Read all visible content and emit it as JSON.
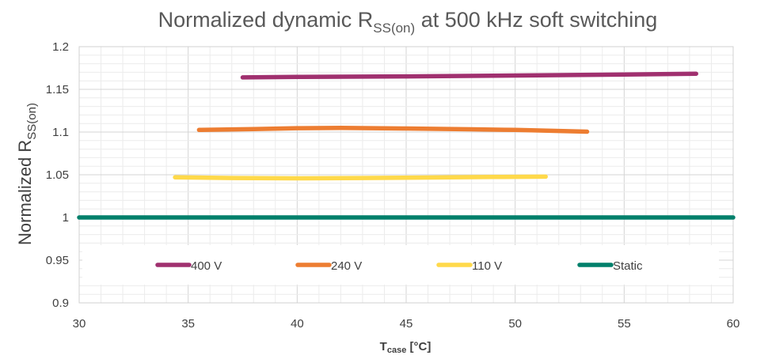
{
  "chart_data": {
    "type": "line",
    "title": {
      "main": "Normalized dynamic R",
      "sub": "SS(on)",
      "suffix": " at 500 kHz soft switching"
    },
    "xlabel": {
      "main": "T",
      "sub": "case",
      "suffix": " [°C]"
    },
    "ylabel": {
      "main": "Normalized R",
      "sub": "SS(on)"
    },
    "xlim": [
      30,
      60
    ],
    "ylim": [
      0.9,
      1.2
    ],
    "x_ticks": [
      "30",
      "35",
      "40",
      "45",
      "50",
      "55",
      "60"
    ],
    "y_ticks": [
      "0.9",
      "0.95",
      "1",
      "1.05",
      "1.1",
      "1.15",
      "1.2"
    ],
    "grid": true,
    "legend_position": "bottom-inside",
    "series": [
      {
        "name": "400 V",
        "color": "#A0306F",
        "x": [
          37.5,
          40,
          45,
          50,
          55,
          58.3
        ],
        "y": [
          1.164,
          1.1645,
          1.1652,
          1.1662,
          1.1673,
          1.1683
        ]
      },
      {
        "name": "240 V",
        "color": "#ED7D31",
        "x": [
          35.5,
          38,
          40,
          42,
          45,
          48,
          50,
          53.3
        ],
        "y": [
          1.1025,
          1.1035,
          1.1045,
          1.1048,
          1.1042,
          1.1032,
          1.1025,
          1.1005
        ]
      },
      {
        "name": "110 V",
        "color": "#FFD94A",
        "x": [
          34.4,
          37,
          40,
          43,
          46,
          49,
          51.4
        ],
        "y": [
          1.047,
          1.0462,
          1.0458,
          1.0462,
          1.0468,
          1.0474,
          1.0478
        ]
      },
      {
        "name": "Static",
        "color": "#00806B",
        "x": [
          30,
          60
        ],
        "y": [
          1.0,
          1.0
        ]
      }
    ]
  }
}
